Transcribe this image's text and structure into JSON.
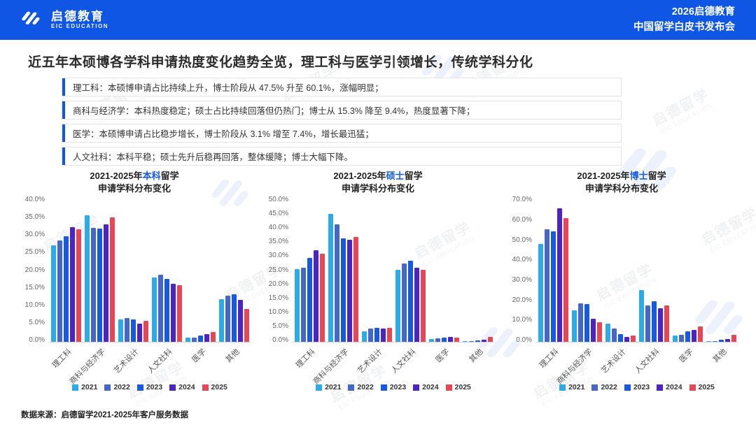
{
  "header": {
    "brand_cn": "启德教育",
    "brand_en": "EIC EDUCATION",
    "event_line1": "2026启德教育",
    "event_line2": "中国留学白皮书发布会"
  },
  "slide": {
    "title": "近五年本硕博各学科申请热度变化趋势全览，理工科与医学引领增长，传统学科分化",
    "bullets": [
      "理工科：本硕博申请占比持续上升，博士阶段从 47.5% 升至 60.1%，涨幅明显；",
      "商科与经济学：本科热度稳定；硕士占比持续回落但仍热门；博士从 15.3% 降至 9.4%，热度显著下降；",
      "医学：本硕博申请占比稳步增长，博士阶段从 3.1% 增至 7.4%，增长最迅猛；",
      "人文社科：本科平稳；硕士先升后稳再回落，整体缓降；博士大幅下降。"
    ],
    "source": "数据来源：启德留学2021-2025年客户服务数据"
  },
  "watermark": {
    "line1": "启德留学",
    "line2": "EIC EDUCATION"
  },
  "legend": {
    "years": [
      "2021",
      "2022",
      "2023",
      "2024",
      "2025"
    ],
    "colors": [
      "#2BACE8",
      "#4667C8",
      "#1659E2",
      "#4D24C4",
      "#E84556"
    ]
  },
  "chart_data": [
    {
      "type": "bar",
      "title_prefix": "2021-2025年",
      "title_highlight": "本科",
      "title_suffix": "留学",
      "title_line2": "申请学科分布变化",
      "categories": [
        "理工科",
        "商科与经济学",
        "艺术设计",
        "人文社科",
        "医学",
        "其他"
      ],
      "series": [
        {
          "name": "2021",
          "values": [
            26.8,
            35.2,
            6.2,
            17.9,
            1.1,
            11.9
          ]
        },
        {
          "name": "2022",
          "values": [
            28.2,
            31.7,
            6.7,
            18.6,
            1.2,
            12.9
          ]
        },
        {
          "name": "2023",
          "values": [
            29.3,
            31.5,
            6.2,
            17.6,
            1.7,
            13.2
          ]
        },
        {
          "name": "2024",
          "values": [
            31.8,
            32.6,
            5.1,
            16.2,
            2.1,
            11.7
          ]
        },
        {
          "name": "2025",
          "values": [
            31.3,
            34.6,
            5.8,
            15.8,
            2.7,
            9.1
          ]
        }
      ],
      "ylim": [
        0,
        40
      ],
      "yticks": [
        "40.0%",
        "35.0%",
        "30.0%",
        "25.0%",
        "20.0%",
        "15.0%",
        "10.0%",
        "5.0%",
        "0.0%"
      ],
      "xlabel": "",
      "ylabel": "",
      "grid": false,
      "legend_position": "bottom"
    },
    {
      "type": "bar",
      "title_prefix": "2021-2025年",
      "title_highlight": "硕士",
      "title_suffix": "留学",
      "title_line2": "申请学科分布变化",
      "categories": [
        "理工科",
        "商科与经济学",
        "艺术设计",
        "人文社科",
        "医学",
        "其他"
      ],
      "series": [
        {
          "name": "2021",
          "values": [
            25.4,
            44.4,
            3.7,
            25.0,
            1.1,
            0.2
          ]
        },
        {
          "name": "2022",
          "values": [
            25.8,
            40.9,
            4.6,
            27.3,
            1.3,
            0.3
          ]
        },
        {
          "name": "2023",
          "values": [
            29.2,
            35.9,
            4.9,
            28.2,
            1.5,
            0.5
          ]
        },
        {
          "name": "2024",
          "values": [
            31.9,
            35.4,
            4.6,
            25.7,
            1.8,
            0.8
          ]
        },
        {
          "name": "2025",
          "values": [
            30.6,
            36.5,
            5.0,
            25.0,
            1.6,
            1.8
          ]
        }
      ],
      "ylim": [
        0,
        50
      ],
      "yticks": [
        "50.0%",
        "45.0%",
        "40.0%",
        "35.0%",
        "30.0%",
        "25.0%",
        "20.0%",
        "15.0%",
        "10.0%",
        "5.0%",
        "0.0%"
      ],
      "xlabel": "",
      "ylabel": "",
      "grid": false,
      "legend_position": "bottom"
    },
    {
      "type": "bar",
      "title_prefix": "2021-2025年",
      "title_highlight": "博士",
      "title_suffix": "留学",
      "title_line2": "申请学科分布变化",
      "categories": [
        "理工科",
        "商科与经济学",
        "艺术设计",
        "人文社科",
        "医学",
        "其他"
      ],
      "series": [
        {
          "name": "2021",
          "values": [
            47.5,
            15.3,
            8.9,
            25.3,
            3.1,
            0.3
          ]
        },
        {
          "name": "2022",
          "values": [
            54.6,
            18.9,
            6.5,
            17.8,
            3.3,
            0.4
          ]
        },
        {
          "name": "2023",
          "values": [
            53.8,
            18.3,
            3.7,
            19.6,
            5.1,
            1.0
          ]
        },
        {
          "name": "2024",
          "values": [
            64.9,
            11.2,
            2.4,
            16.2,
            5.7,
            1.4
          ]
        },
        {
          "name": "2025",
          "values": [
            60.1,
            9.4,
            3.0,
            17.6,
            7.4,
            3.4
          ]
        }
      ],
      "ylim": [
        0,
        70
      ],
      "yticks": [
        "70.0%",
        "60.0%",
        "50.0%",
        "40.0%",
        "30.0%",
        "20.0%",
        "10.0%",
        "0.0%"
      ],
      "xlabel": "",
      "ylabel": "",
      "grid": false,
      "legend_position": "bottom"
    }
  ]
}
